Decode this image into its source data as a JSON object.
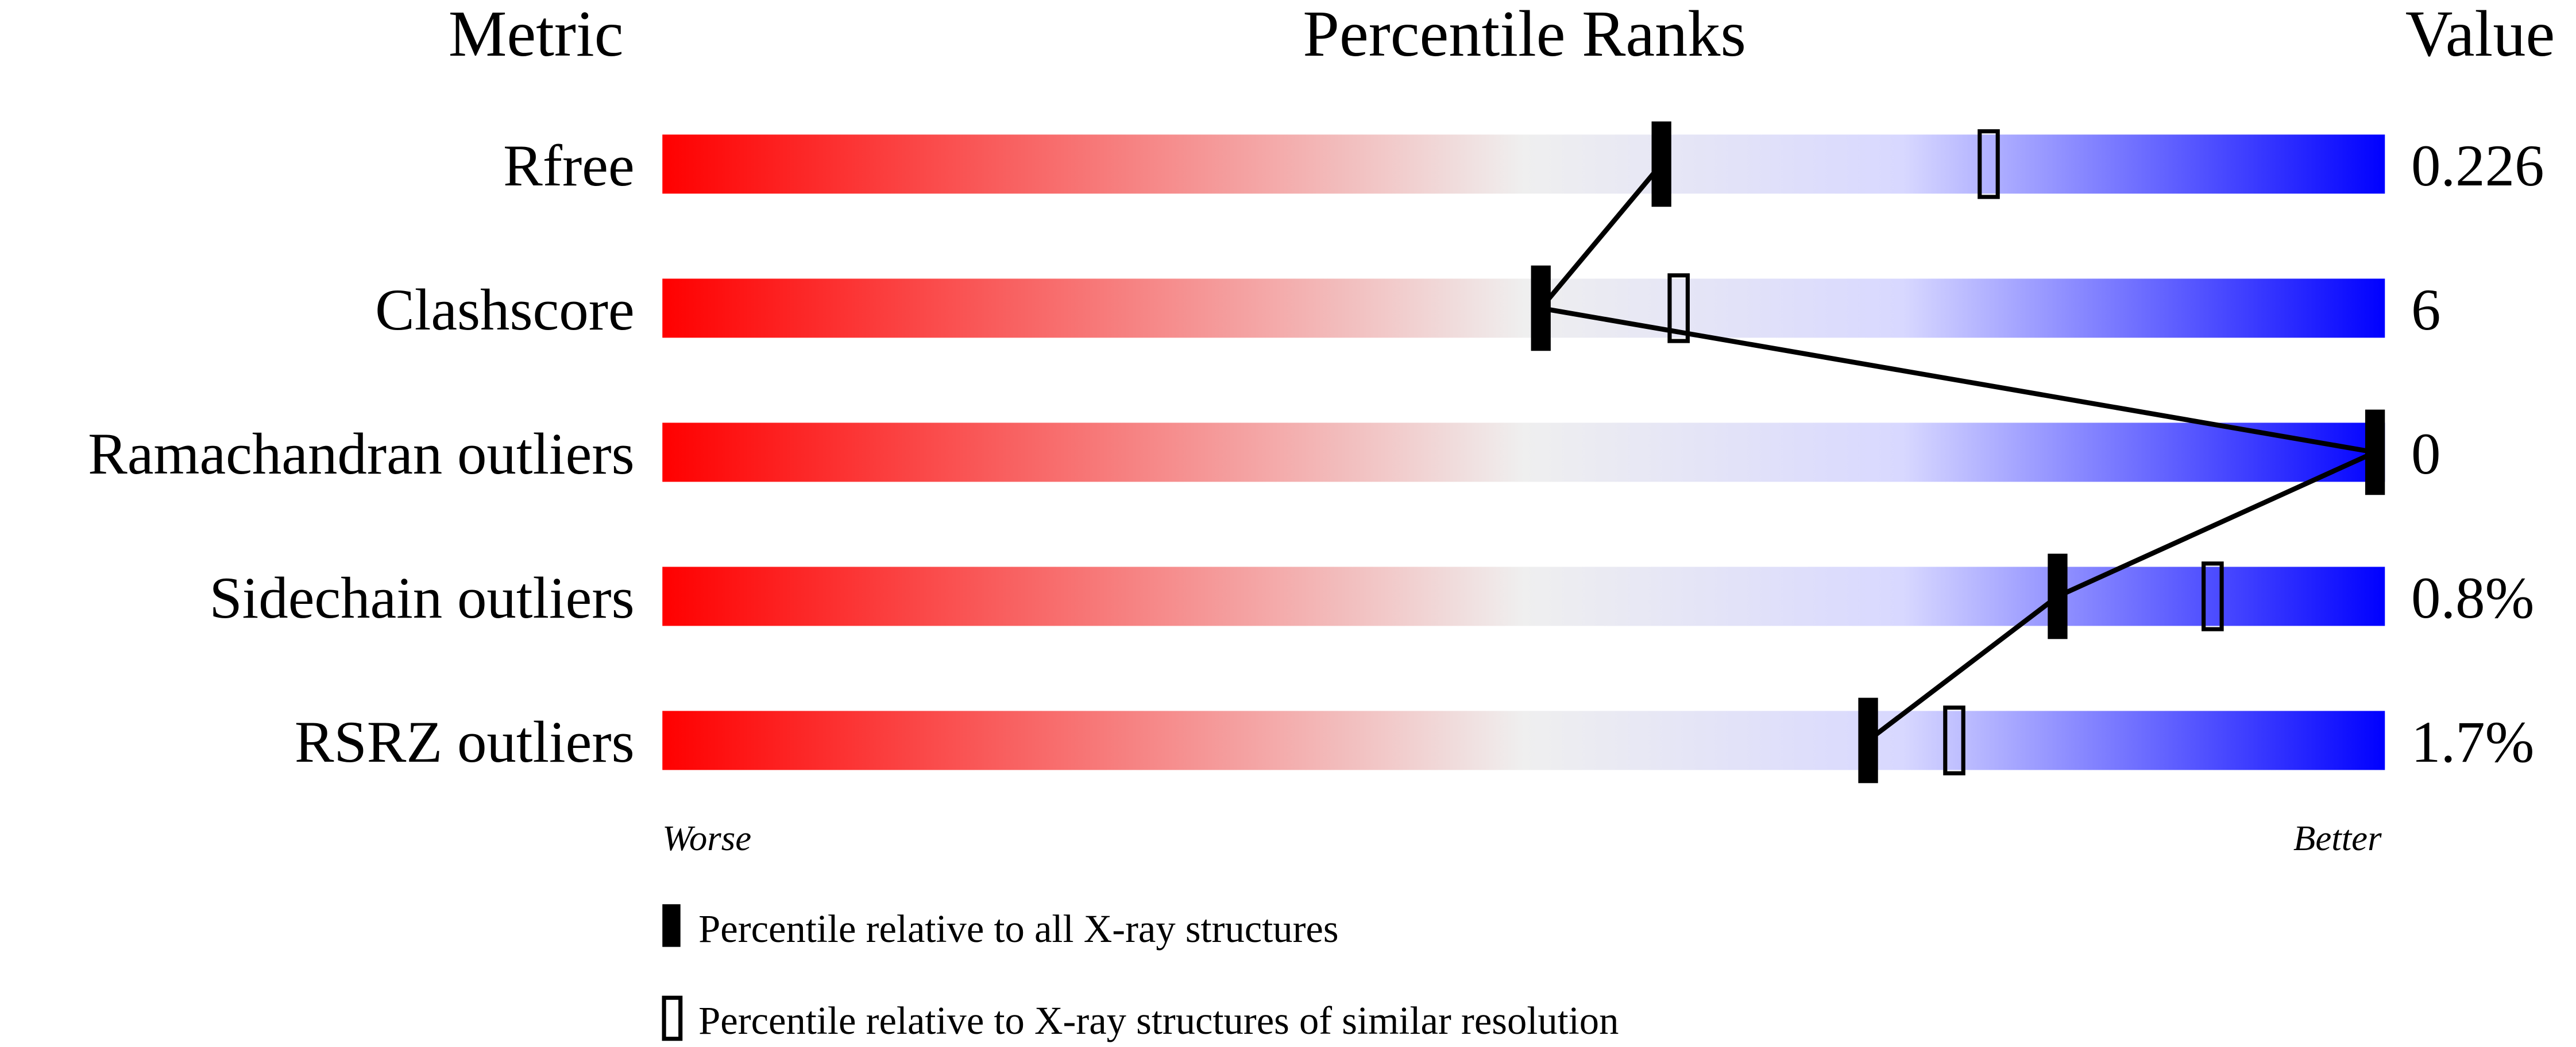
{
  "chart_data": {
    "type": "percentile-bar",
    "headers": {
      "metric": "Metric",
      "ranks": "Percentile Ranks",
      "value": "Value"
    },
    "xlim": [
      0,
      100
    ],
    "axis_labels": {
      "left": "Worse",
      "right": "Better"
    },
    "rows": [
      {
        "metric": "Rfree",
        "value": "0.226",
        "percentile_all": 58,
        "percentile_similar": 77
      },
      {
        "metric": "Clashscore",
        "value": "6",
        "percentile_all": 51,
        "percentile_similar": 59
      },
      {
        "metric": "Ramachandran outliers",
        "value": "0",
        "percentile_all": 100,
        "percentile_similar": 100
      },
      {
        "metric": "Sidechain outliers",
        "value": "0.8%",
        "percentile_all": 81,
        "percentile_similar": 90
      },
      {
        "metric": "RSRZ outliers",
        "value": "1.7%",
        "percentile_all": 70,
        "percentile_similar": 75
      }
    ],
    "legend": {
      "filled": "Percentile relative to all X-ray structures",
      "open": "Percentile relative to X-ray structures of similar resolution"
    },
    "colors": {
      "worse": "#ff0000",
      "middle": "#efefef",
      "light_better": "#d8d8ff",
      "better": "#0000ff"
    }
  }
}
